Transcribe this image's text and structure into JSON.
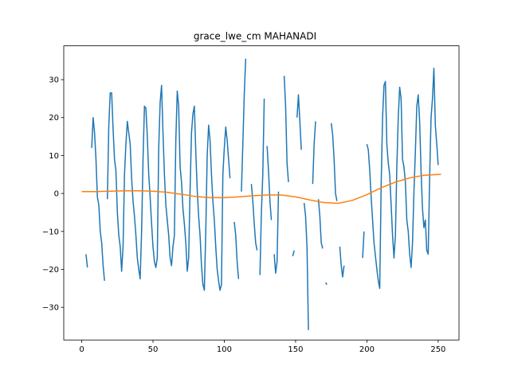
{
  "chart_data": {
    "type": "line",
    "title": "grace_lwe_cm MAHANADI",
    "xlabel": "",
    "ylabel": "",
    "xlim": [
      -12.6,
      264.6
    ],
    "ylim": [
      -38.6,
      38.9
    ],
    "xticks": [
      0,
      50,
      100,
      150,
      200,
      250
    ],
    "yticks": [
      -30,
      -20,
      -10,
      0,
      10,
      20,
      30
    ],
    "grid": false,
    "legend": "none",
    "series": [
      {
        "color": "#1f77b4",
        "points": [
          [
            3,
            -16
          ],
          [
            4,
            -19.5
          ],
          [
            null,
            null
          ],
          [
            7,
            12
          ],
          [
            8,
            20
          ],
          [
            9,
            16
          ],
          [
            10,
            9
          ],
          [
            11,
            -1
          ],
          [
            12,
            -3
          ],
          [
            13,
            -10
          ],
          [
            14,
            -13
          ],
          [
            15,
            -19
          ],
          [
            16,
            -23
          ],
          [
            null,
            null
          ],
          [
            18,
            -1.5
          ],
          [
            19,
            18
          ],
          [
            20,
            26.5
          ],
          [
            21,
            26.5
          ],
          [
            22,
            17
          ],
          [
            23,
            9
          ],
          [
            24,
            6
          ],
          [
            25,
            -5
          ],
          [
            26,
            -11
          ],
          [
            27,
            -14
          ],
          [
            28,
            -20.5
          ],
          [
            29,
            -14
          ],
          [
            30,
            5
          ],
          [
            31,
            13
          ],
          [
            32,
            19
          ],
          [
            33,
            16
          ],
          [
            34,
            13
          ],
          [
            35,
            4
          ],
          [
            36,
            -2
          ],
          [
            37,
            -6
          ],
          [
            38,
            -11
          ],
          [
            39,
            -17
          ],
          [
            40,
            -20
          ],
          [
            41,
            -22.5
          ],
          [
            42,
            -10
          ],
          [
            43,
            9
          ],
          [
            44,
            23
          ],
          [
            45,
            22.5
          ],
          [
            46,
            15
          ],
          [
            47,
            5
          ],
          [
            48,
            -1
          ],
          [
            49,
            -8
          ],
          [
            50,
            -14
          ],
          [
            51,
            -18
          ],
          [
            52,
            -19.5
          ],
          [
            53,
            -17
          ],
          [
            54,
            12
          ],
          [
            55,
            24
          ],
          [
            56,
            28.5
          ],
          [
            57,
            16
          ],
          [
            58,
            5
          ],
          [
            59,
            -3
          ],
          [
            60,
            -7
          ],
          [
            61,
            -11
          ],
          [
            62,
            -17
          ],
          [
            63,
            -19
          ],
          [
            64,
            -14
          ],
          [
            65,
            -11
          ],
          [
            66,
            14
          ],
          [
            67,
            27
          ],
          [
            68,
            23
          ],
          [
            69,
            7
          ],
          [
            70,
            3
          ],
          [
            71,
            -4
          ],
          [
            72,
            -8
          ],
          [
            73,
            -13
          ],
          [
            74,
            -20.5
          ],
          [
            75,
            -17
          ],
          [
            76,
            1
          ],
          [
            77,
            16
          ],
          [
            78,
            21
          ],
          [
            79,
            23
          ],
          [
            80,
            11
          ],
          [
            81,
            1
          ],
          [
            82,
            -6
          ],
          [
            83,
            -11
          ],
          [
            84,
            -19
          ],
          [
            85,
            -24
          ],
          [
            86,
            -25.5
          ],
          [
            87,
            -10
          ],
          [
            88,
            10
          ],
          [
            89,
            18
          ],
          [
            90,
            14
          ],
          [
            91,
            5
          ],
          [
            92,
            -2
          ],
          [
            93,
            -7
          ],
          [
            94,
            -14
          ],
          [
            95,
            -20
          ],
          [
            96,
            -23
          ],
          [
            97,
            -25.5
          ],
          [
            98,
            -24
          ],
          [
            99,
            5
          ],
          [
            100,
            12
          ],
          [
            101,
            17.5
          ],
          [
            102,
            14
          ],
          [
            103,
            9
          ],
          [
            104,
            4
          ],
          [
            null,
            null
          ],
          [
            107,
            -7.5
          ],
          [
            108,
            -11
          ],
          [
            109,
            -18
          ],
          [
            110,
            -22.5
          ],
          [
            null,
            null
          ],
          [
            112,
            0.5
          ],
          [
            113,
            13
          ],
          [
            114,
            26
          ],
          [
            115,
            35.5
          ],
          [
            null,
            null
          ],
          [
            119,
            2.5
          ],
          [
            120,
            -2
          ],
          [
            121,
            -8
          ],
          [
            122,
            -13
          ],
          [
            123,
            -15
          ],
          [
            null,
            null
          ],
          [
            125,
            -21.5
          ],
          [
            126,
            -5
          ],
          [
            127,
            5
          ],
          [
            128,
            25
          ],
          [
            null,
            null
          ],
          [
            130,
            12.5
          ],
          [
            131,
            6
          ],
          [
            132,
            -2
          ],
          [
            133,
            -7
          ],
          [
            null,
            null
          ],
          [
            135,
            -16
          ],
          [
            136,
            -21
          ],
          [
            137,
            -18
          ],
          [
            138,
            0.5
          ],
          [
            null,
            null
          ],
          [
            140,
            -17.5
          ],
          [
            null,
            null
          ],
          [
            142,
            31
          ],
          [
            143,
            23
          ],
          [
            144,
            8
          ],
          [
            145,
            3
          ],
          [
            null,
            null
          ],
          [
            148,
            -16.5
          ],
          [
            149,
            -15
          ],
          [
            null,
            null
          ],
          [
            151,
            20
          ],
          [
            152,
            26
          ],
          [
            153,
            19
          ],
          [
            154,
            11.5
          ],
          [
            null,
            null
          ],
          [
            156,
            -2.5
          ],
          [
            157,
            -6
          ],
          [
            158,
            -14
          ],
          [
            159,
            -36
          ],
          [
            null,
            null
          ],
          [
            162,
            2.5
          ],
          [
            163,
            13
          ],
          [
            164,
            19
          ],
          [
            null,
            null
          ],
          [
            166,
            -1.5
          ],
          [
            167,
            -6
          ],
          [
            168,
            -13
          ],
          [
            169,
            -14.5
          ],
          [
            null,
            null
          ],
          [
            171,
            -23.5
          ],
          [
            172,
            -24
          ],
          [
            null,
            null
          ],
          [
            175,
            18.5
          ],
          [
            176,
            15.5
          ],
          [
            177,
            9
          ],
          [
            178,
            0
          ],
          [
            179,
            -2
          ],
          [
            null,
            null
          ],
          [
            181,
            -14
          ],
          [
            182,
            -19
          ],
          [
            183,
            -22
          ],
          [
            184,
            -19
          ],
          [
            null,
            null
          ],
          [
            197,
            -17
          ],
          [
            198,
            -10
          ],
          [
            null,
            null
          ],
          [
            200,
            13
          ],
          [
            201,
            11.5
          ],
          [
            202,
            6
          ],
          [
            203,
            -1
          ],
          [
            204,
            -7
          ],
          [
            205,
            -13
          ],
          [
            206,
            -16.5
          ],
          [
            207,
            -20
          ],
          [
            208,
            -23
          ],
          [
            209,
            -25
          ],
          [
            210,
            2
          ],
          [
            211,
            20
          ],
          [
            212,
            28.5
          ],
          [
            213,
            29.5
          ],
          [
            214,
            13
          ],
          [
            215,
            8
          ],
          [
            216,
            5
          ],
          [
            217,
            -3
          ],
          [
            218,
            -11
          ],
          [
            219,
            -17
          ],
          [
            220,
            -11
          ],
          [
            221,
            7
          ],
          [
            222,
            20
          ],
          [
            223,
            28
          ],
          [
            224,
            25
          ],
          [
            225,
            9
          ],
          [
            226,
            7
          ],
          [
            227,
            3
          ],
          [
            228,
            -7
          ],
          [
            229,
            -10
          ],
          [
            230,
            -16
          ],
          [
            231,
            -19.5
          ],
          [
            232,
            -13
          ],
          [
            233,
            0.5
          ],
          [
            234,
            11
          ],
          [
            235,
            23
          ],
          [
            236,
            26
          ],
          [
            237,
            19
          ],
          [
            238,
            6
          ],
          [
            239,
            -4
          ],
          [
            240,
            -9
          ],
          [
            241,
            -7
          ],
          [
            242,
            -15
          ],
          [
            243,
            -16
          ],
          [
            244,
            4
          ],
          [
            245,
            20
          ],
          [
            246,
            25
          ],
          [
            247,
            33
          ],
          [
            248,
            18
          ],
          [
            249,
            13
          ],
          [
            250,
            7.5
          ]
        ]
      },
      {
        "color": "#ff7f0e",
        "points": [
          [
            0,
            0.5
          ],
          [
            10,
            0.5
          ],
          [
            20,
            0.6
          ],
          [
            30,
            0.7
          ],
          [
            40,
            0.7
          ],
          [
            50,
            0.6
          ],
          [
            60,
            0.3
          ],
          [
            70,
            -0.2
          ],
          [
            80,
            -0.8
          ],
          [
            90,
            -1.1
          ],
          [
            100,
            -1.1
          ],
          [
            110,
            -0.9
          ],
          [
            120,
            -0.6
          ],
          [
            130,
            -0.4
          ],
          [
            140,
            -0.4
          ],
          [
            150,
            -0.9
          ],
          [
            160,
            -1.7
          ],
          [
            170,
            -2.4
          ],
          [
            180,
            -2.6
          ],
          [
            190,
            -1.8
          ],
          [
            200,
            -0.3
          ],
          [
            210,
            1.5
          ],
          [
            220,
            3.0
          ],
          [
            230,
            4.1
          ],
          [
            240,
            4.8
          ],
          [
            250,
            5.0
          ],
          [
            252,
            5.0
          ]
        ]
      }
    ]
  }
}
